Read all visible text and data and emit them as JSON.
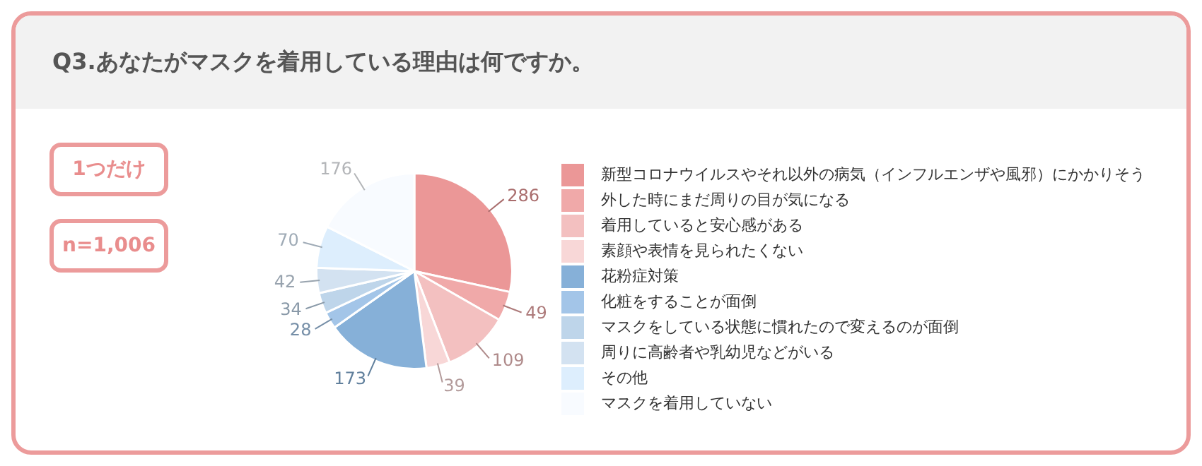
{
  "chart_data": {
    "type": "pie",
    "title": "Q3.あなたがマスクを着用している理由は何ですか。",
    "annotations": [
      "1つだけ",
      "n=1,006"
    ],
    "categories": [
      "新型コロナウイルスやそれ以外の病気（インフルエンザや風邪）にかかりそう",
      "外した時にまだ周りの目が気になる",
      "着用していると安心感がある",
      "素顔や表情を見られたくない",
      "花粉症対策",
      "化粧をすることが面倒",
      "マスクをしている状態に慣れたので変えるのが面倒",
      "周りに高齢者や乳幼児などがいる",
      "その他",
      "マスクを着用していない"
    ],
    "values": [
      286,
      49,
      109,
      39,
      173,
      28,
      34,
      42,
      70,
      176
    ],
    "colors": [
      "#eb9797",
      "#f0a9a9",
      "#f3c0c0",
      "#f8d7d7",
      "#86b0d8",
      "#a3c5e8",
      "#bed5ea",
      "#d3e2f1",
      "#ddeefd",
      "#f8fbff"
    ],
    "data_labels": true,
    "legend": "right"
  }
}
